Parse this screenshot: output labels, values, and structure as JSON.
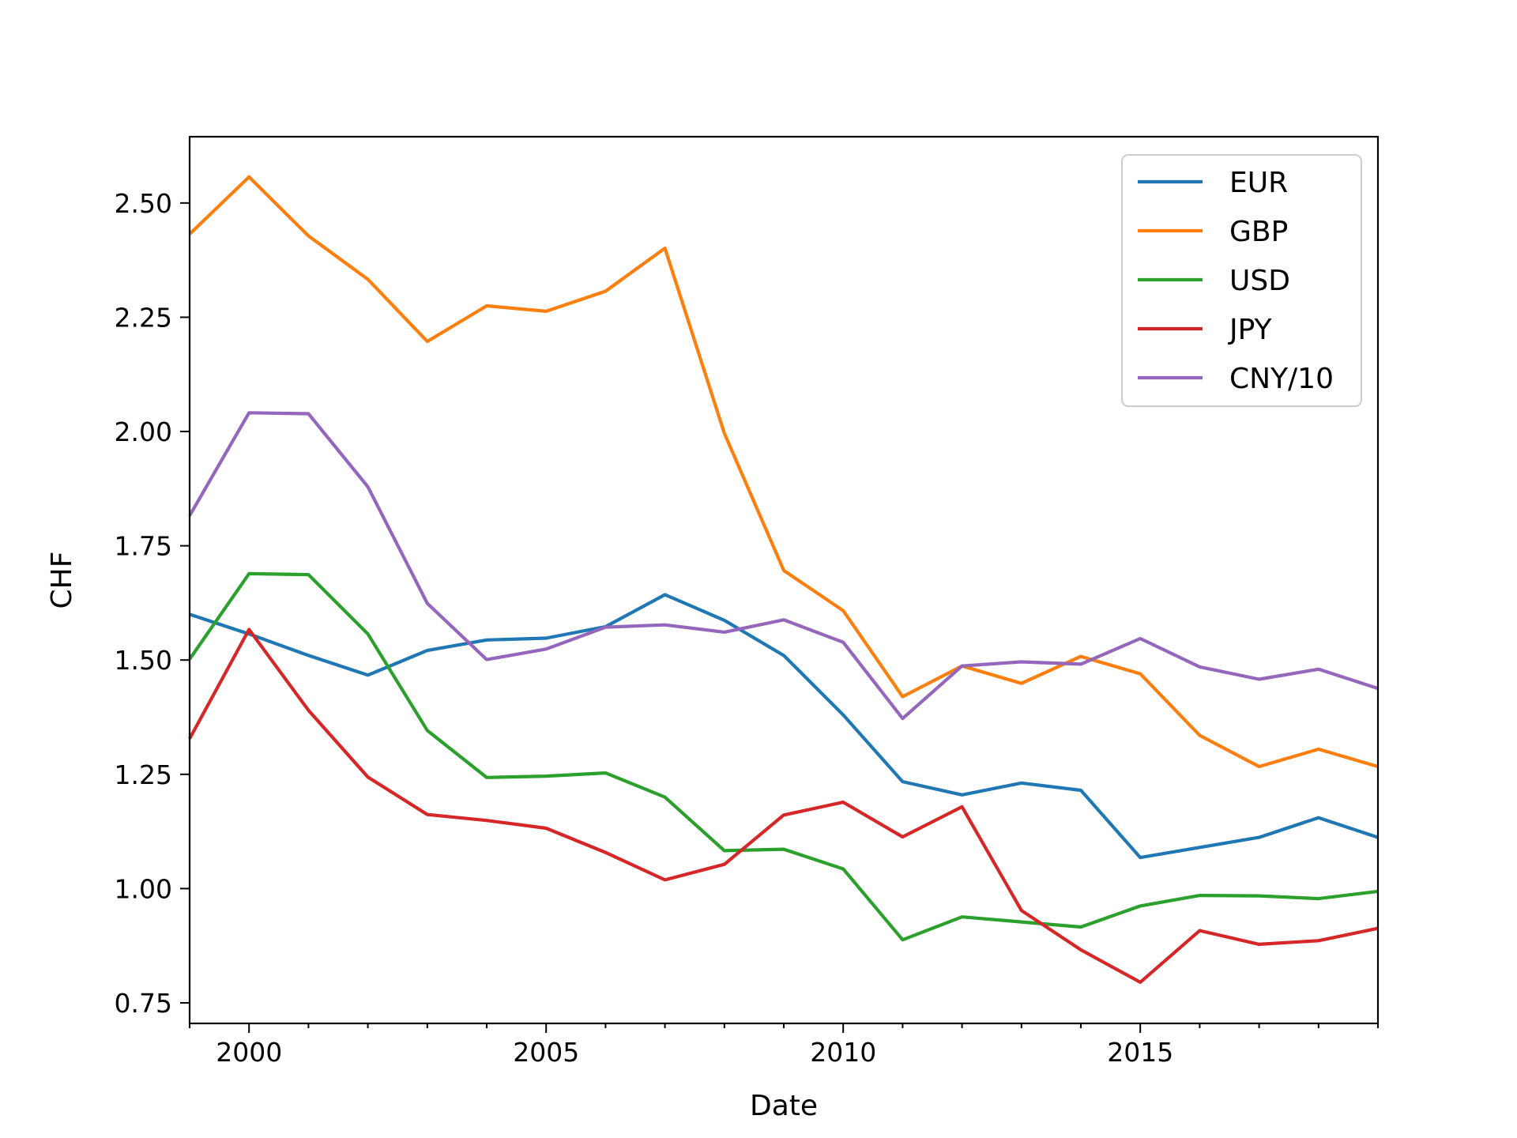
{
  "chart_data": {
    "type": "line",
    "title": "",
    "xlabel": "Date",
    "ylabel": "CHF",
    "xlim": [
      1999,
      2019
    ],
    "ylim": [
      0.705,
      2.645
    ],
    "xticks": [
      2000,
      2005,
      2010,
      2015
    ],
    "yticks": [
      "0.75",
      "1.00",
      "1.25",
      "1.50",
      "1.75",
      "2.00",
      "2.25",
      "2.50"
    ],
    "grid": false,
    "legend_position": "top-right",
    "x": [
      1999,
      2000,
      2001,
      2002,
      2003,
      2004,
      2005,
      2006,
      2007,
      2008,
      2009,
      2010,
      2011,
      2012,
      2013,
      2014,
      2015,
      2016,
      2017,
      2018,
      2019
    ],
    "series": [
      {
        "name": "EUR",
        "color": "#1f77b4",
        "values": [
          1.6,
          1.557,
          1.51,
          1.467,
          1.521,
          1.544,
          1.548,
          1.573,
          1.643,
          1.587,
          1.51,
          1.38,
          1.234,
          1.205,
          1.231,
          1.215,
          1.068,
          1.09,
          1.112,
          1.155,
          1.112
        ]
      },
      {
        "name": "GBP",
        "color": "#ff7f0e",
        "values": [
          2.432,
          2.557,
          2.428,
          2.333,
          2.197,
          2.275,
          2.263,
          2.307,
          2.401,
          1.996,
          1.696,
          1.608,
          1.42,
          1.487,
          1.449,
          1.508,
          1.47,
          1.335,
          1.267,
          1.305,
          1.267
        ]
      },
      {
        "name": "USD",
        "color": "#2ca02c",
        "values": [
          1.502,
          1.689,
          1.687,
          1.557,
          1.346,
          1.243,
          1.246,
          1.253,
          1.2,
          1.083,
          1.086,
          1.043,
          0.888,
          0.938,
          0.927,
          0.916,
          0.962,
          0.985,
          0.984,
          0.978,
          0.994
        ]
      },
      {
        "name": "JPY",
        "color": "#d62728",
        "values": [
          1.328,
          1.567,
          1.39,
          1.244,
          1.162,
          1.149,
          1.132,
          1.079,
          1.019,
          1.053,
          1.161,
          1.189,
          1.113,
          1.179,
          0.952,
          0.866,
          0.795,
          0.908,
          0.878,
          0.886,
          0.913
        ]
      },
      {
        "name": "CNY/10",
        "color": "#9467bd",
        "values": [
          1.816,
          2.041,
          2.039,
          1.879,
          1.624,
          1.501,
          1.524,
          1.572,
          1.577,
          1.561,
          1.588,
          1.539,
          1.372,
          1.487,
          1.496,
          1.491,
          1.547,
          1.485,
          1.458,
          1.48,
          1.438
        ]
      }
    ]
  }
}
